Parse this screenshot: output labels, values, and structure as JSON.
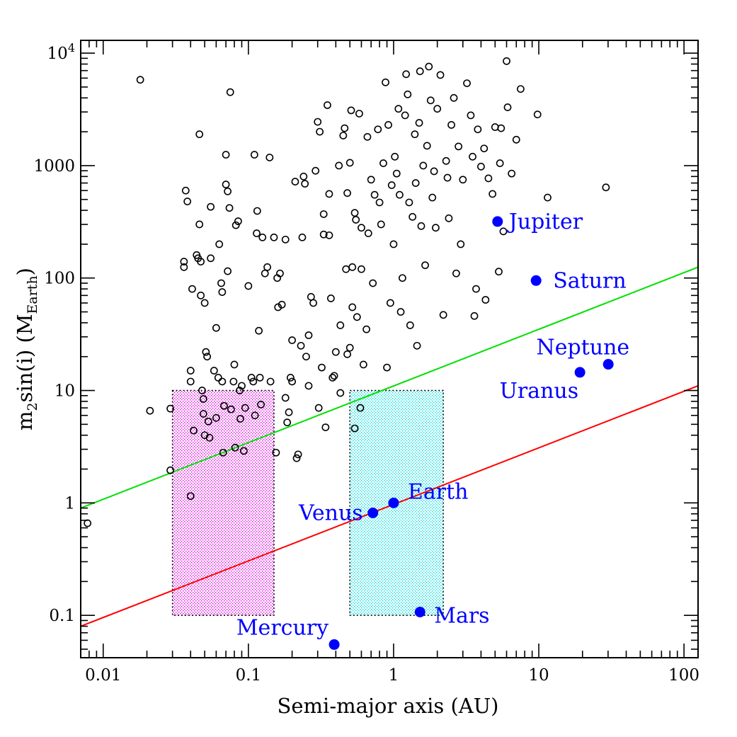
{
  "chart_data": {
    "type": "scatter",
    "title": "",
    "xlabel": "Semi-major axis (AU)",
    "ylabel": {
      "main": "m",
      "sub1": "2",
      "mid": "sin(i)  (M",
      "sub2": "Earth",
      "end": ")"
    },
    "xscale": "log",
    "yscale": "log",
    "xlim": [
      0.007,
      125
    ],
    "ylim": [
      0.042,
      13000
    ],
    "xticks": [
      {
        "value": 0.01,
        "label": "0.01"
      },
      {
        "value": 0.1,
        "label": "0.1"
      },
      {
        "value": 1,
        "label": "1"
      },
      {
        "value": 10,
        "label": "10"
      },
      {
        "value": 100,
        "label": "100"
      }
    ],
    "yticks": [
      {
        "value": 0.1,
        "label": "0.1"
      },
      {
        "value": 1,
        "label": "1"
      },
      {
        "value": 10,
        "label": "10"
      },
      {
        "value": 100,
        "label": "100"
      },
      {
        "value": 1000,
        "label": "1000"
      },
      {
        "value": 10000,
        "label": "10",
        "sup": "4"
      }
    ],
    "colors": {
      "planets": "#0000ff",
      "green_line": "#00e000",
      "red_line": "#ff0000",
      "zone_inner": "#e000e0",
      "zone_hz": "#00dcdc"
    },
    "lines": [
      {
        "name": "green",
        "points": [
          [
            0.007,
            0.9
          ],
          [
            125,
            125
          ]
        ]
      },
      {
        "name": "red",
        "points": [
          [
            0.007,
            0.08
          ],
          [
            125,
            11
          ]
        ]
      }
    ],
    "regions": [
      {
        "name": "inner-zone",
        "x": [
          0.03,
          0.15
        ],
        "y": [
          0.1,
          10
        ]
      },
      {
        "name": "habitable-zone",
        "x": [
          0.5,
          2.2
        ],
        "y": [
          0.1,
          10
        ]
      }
    ],
    "planets": [
      {
        "name": "Mercury",
        "a": 0.39,
        "m": 0.055
      },
      {
        "name": "Venus",
        "a": 0.72,
        "m": 0.815
      },
      {
        "name": "Earth",
        "a": 1.0,
        "m": 1.0
      },
      {
        "name": "Mars",
        "a": 1.52,
        "m": 0.107
      },
      {
        "name": "Jupiter",
        "a": 5.2,
        "m": 318
      },
      {
        "name": "Saturn",
        "a": 9.58,
        "m": 95
      },
      {
        "name": "Uranus",
        "a": 19.2,
        "m": 14.5
      },
      {
        "name": "Neptune",
        "a": 30.1,
        "m": 17.1
      }
    ],
    "exoplanets": [
      [
        0.0078,
        0.66
      ],
      [
        0.018,
        5800
      ],
      [
        0.021,
        6.6
      ],
      [
        0.029,
        6.9
      ],
      [
        0.029,
        1.95
      ],
      [
        0.037,
        600
      ],
      [
        0.038,
        480
      ],
      [
        0.036,
        140
      ],
      [
        0.036,
        125
      ],
      [
        0.04,
        1.15
      ],
      [
        0.041,
        80
      ],
      [
        0.042,
        4.4
      ],
      [
        0.04,
        15
      ],
      [
        0.04,
        12
      ],
      [
        0.044,
        160
      ],
      [
        0.045,
        150
      ],
      [
        0.047,
        140
      ],
      [
        0.046,
        300
      ],
      [
        0.046,
        1900
      ],
      [
        0.047,
        70
      ],
      [
        0.048,
        10
      ],
      [
        0.049,
        8.4
      ],
      [
        0.049,
        6.2
      ],
      [
        0.05,
        4
      ],
      [
        0.05,
        60
      ],
      [
        0.051,
        22
      ],
      [
        0.052,
        20
      ],
      [
        0.053,
        5.3
      ],
      [
        0.054,
        3.8
      ],
      [
        0.055,
        150
      ],
      [
        0.055,
        430
      ],
      [
        0.058,
        15
      ],
      [
        0.06,
        5.7
      ],
      [
        0.06,
        36
      ],
      [
        0.062,
        13
      ],
      [
        0.063,
        200
      ],
      [
        0.065,
        90
      ],
      [
        0.066,
        75
      ],
      [
        0.066,
        12
      ],
      [
        0.067,
        2.8
      ],
      [
        0.068,
        7.3
      ],
      [
        0.07,
        680
      ],
      [
        0.07,
        1250
      ],
      [
        0.072,
        590
      ],
      [
        0.072,
        115
      ],
      [
        0.074,
        420
      ],
      [
        0.075,
        4500
      ],
      [
        0.076,
        6.8
      ],
      [
        0.079,
        12
      ],
      [
        0.08,
        17
      ],
      [
        0.081,
        3.1
      ],
      [
        0.082,
        295
      ],
      [
        0.085,
        320
      ],
      [
        0.087,
        10
      ],
      [
        0.088,
        5.6
      ],
      [
        0.09,
        11
      ],
      [
        0.093,
        2.9
      ],
      [
        0.095,
        7
      ],
      [
        0.1,
        85
      ],
      [
        0.105,
        13
      ],
      [
        0.108,
        12
      ],
      [
        0.11,
        1250
      ],
      [
        0.111,
        6
      ],
      [
        0.114,
        250
      ],
      [
        0.115,
        395
      ],
      [
        0.118,
        34
      ],
      [
        0.12,
        13
      ],
      [
        0.122,
        7.5
      ],
      [
        0.125,
        230
      ],
      [
        0.13,
        110
      ],
      [
        0.135,
        125
      ],
      [
        0.14,
        1180
      ],
      [
        0.142,
        12
      ],
      [
        0.15,
        230
      ],
      [
        0.155,
        2.8
      ],
      [
        0.158,
        100
      ],
      [
        0.16,
        55
      ],
      [
        0.165,
        110
      ],
      [
        0.17,
        58
      ],
      [
        0.18,
        8.6
      ],
      [
        0.18,
        220
      ],
      [
        0.185,
        5.2
      ],
      [
        0.19,
        6.4
      ],
      [
        0.195,
        13
      ],
      [
        0.2,
        28
      ],
      [
        0.2,
        12
      ],
      [
        0.21,
        720
      ],
      [
        0.215,
        2.5
      ],
      [
        0.22,
        2.7
      ],
      [
        0.23,
        25
      ],
      [
        0.235,
        230
      ],
      [
        0.24,
        800
      ],
      [
        0.245,
        690
      ],
      [
        0.25,
        20
      ],
      [
        0.26,
        11
      ],
      [
        0.26,
        31
      ],
      [
        0.27,
        68
      ],
      [
        0.28,
        60
      ],
      [
        0.29,
        900
      ],
      [
        0.3,
        2450
      ],
      [
        0.305,
        7
      ],
      [
        0.31,
        2000
      ],
      [
        0.32,
        16
      ],
      [
        0.33,
        370
      ],
      [
        0.33,
        244
      ],
      [
        0.34,
        4.7
      ],
      [
        0.35,
        3450
      ],
      [
        0.36,
        560
      ],
      [
        0.36,
        240
      ],
      [
        0.37,
        66
      ],
      [
        0.38,
        13
      ],
      [
        0.39,
        13.5
      ],
      [
        0.4,
        22
      ],
      [
        0.42,
        1000
      ],
      [
        0.43,
        9.5
      ],
      [
        0.43,
        38
      ],
      [
        0.45,
        1850
      ],
      [
        0.46,
        2150
      ],
      [
        0.47,
        120
      ],
      [
        0.48,
        21
      ],
      [
        0.48,
        570
      ],
      [
        0.5,
        24
      ],
      [
        0.5,
        1060
      ],
      [
        0.51,
        3100
      ],
      [
        0.52,
        125
      ],
      [
        0.52,
        55
      ],
      [
        0.54,
        380
      ],
      [
        0.54,
        4.6
      ],
      [
        0.55,
        330
      ],
      [
        0.56,
        45
      ],
      [
        0.58,
        2900
      ],
      [
        0.59,
        7
      ],
      [
        0.6,
        280
      ],
      [
        0.6,
        120
      ],
      [
        0.62,
        17
      ],
      [
        0.65,
        35
      ],
      [
        0.66,
        1800
      ],
      [
        0.67,
        250
      ],
      [
        0.7,
        750
      ],
      [
        0.72,
        90
      ],
      [
        0.74,
        550
      ],
      [
        0.78,
        2100
      ],
      [
        0.8,
        470
      ],
      [
        0.82,
        300
      ],
      [
        0.85,
        1050
      ],
      [
        0.88,
        5500
      ],
      [
        0.9,
        16
      ],
      [
        0.92,
        2300
      ],
      [
        0.95,
        60
      ],
      [
        0.97,
        670
      ],
      [
        1.0,
        200
      ],
      [
        1.02,
        1200
      ],
      [
        1.05,
        850
      ],
      [
        1.08,
        3200
      ],
      [
        1.1,
        550
      ],
      [
        1.12,
        50
      ],
      [
        1.15,
        100
      ],
      [
        1.2,
        2800
      ],
      [
        1.22,
        6500
      ],
      [
        1.25,
        4300
      ],
      [
        1.28,
        470
      ],
      [
        1.3,
        38
      ],
      [
        1.35,
        350
      ],
      [
        1.4,
        1900
      ],
      [
        1.42,
        700
      ],
      [
        1.45,
        25
      ],
      [
        1.5,
        2400
      ],
      [
        1.52,
        6900
      ],
      [
        1.55,
        290
      ],
      [
        1.6,
        1000
      ],
      [
        1.65,
        130
      ],
      [
        1.7,
        1500
      ],
      [
        1.75,
        7600
      ],
      [
        1.8,
        3800
      ],
      [
        1.85,
        520
      ],
      [
        1.9,
        890
      ],
      [
        1.95,
        280
      ],
      [
        2.0,
        3200
      ],
      [
        2.1,
        6400
      ],
      [
        2.2,
        47
      ],
      [
        2.3,
        1100
      ],
      [
        2.35,
        780
      ],
      [
        2.4,
        340
      ],
      [
        2.5,
        2300
      ],
      [
        2.6,
        4000
      ],
      [
        2.7,
        110
      ],
      [
        2.8,
        1480
      ],
      [
        2.9,
        200
      ],
      [
        3.0,
        750
      ],
      [
        3.2,
        5400
      ],
      [
        3.4,
        2800
      ],
      [
        3.5,
        1200
      ],
      [
        3.6,
        46
      ],
      [
        3.7,
        80
      ],
      [
        3.8,
        2100
      ],
      [
        4.0,
        980
      ],
      [
        4.2,
        1420
      ],
      [
        4.3,
        64
      ],
      [
        4.5,
        770
      ],
      [
        4.8,
        560
      ],
      [
        5.0,
        2200
      ],
      [
        5.3,
        114
      ],
      [
        5.4,
        1050
      ],
      [
        5.5,
        2150
      ],
      [
        5.7,
        260
      ],
      [
        6.0,
        8500
      ],
      [
        6.1,
        3300
      ],
      [
        6.5,
        850
      ],
      [
        7.0,
        1700
      ],
      [
        7.5,
        4800
      ],
      [
        9.8,
        2850
      ],
      [
        11.5,
        520
      ],
      [
        29,
        640
      ]
    ]
  }
}
